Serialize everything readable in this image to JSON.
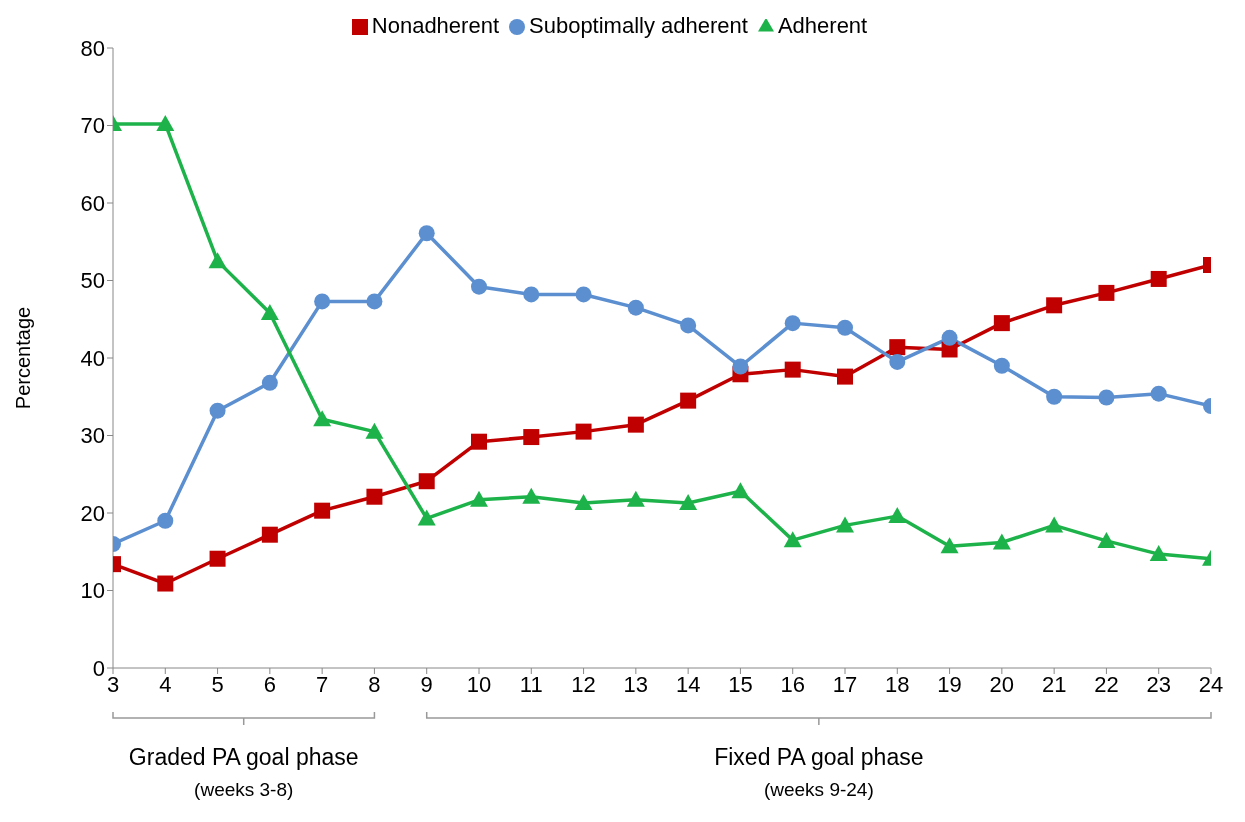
{
  "chart_data": {
    "type": "line",
    "ylabel": "Percentage",
    "legend": "top",
    "grid": false,
    "x": [
      3,
      4,
      5,
      6,
      7,
      8,
      9,
      10,
      11,
      12,
      13,
      14,
      15,
      16,
      17,
      18,
      19,
      20,
      21,
      22,
      23,
      24
    ],
    "xlim": [
      3,
      24
    ],
    "xticks": [
      3,
      4,
      5,
      6,
      7,
      8,
      9,
      10,
      11,
      12,
      13,
      14,
      15,
      16,
      17,
      18,
      19,
      20,
      21,
      22,
      23,
      24
    ],
    "ylim": [
      0,
      80
    ],
    "yticks": [
      0,
      10,
      20,
      30,
      40,
      50,
      60,
      70,
      80
    ],
    "series": [
      {
        "name": "Nonadherent",
        "color": "#c00000",
        "marker": "square",
        "values": [
          13.4,
          10.9,
          14.1,
          17.2,
          20.3,
          22.1,
          24.1,
          29.2,
          29.8,
          30.5,
          31.4,
          34.5,
          37.9,
          38.5,
          37.6,
          41.4,
          41.1,
          44.5,
          46.8,
          48.4,
          50.2,
          52.0
        ]
      },
      {
        "name": "Suboptimally adherent",
        "color": "#5b8fd0",
        "marker": "circle",
        "values": [
          16.0,
          19.0,
          33.2,
          36.8,
          47.3,
          47.3,
          56.1,
          49.2,
          48.2,
          48.2,
          46.5,
          44.2,
          38.9,
          44.5,
          43.9,
          39.5,
          42.6,
          39.0,
          35.0,
          34.9,
          35.4,
          33.8
        ]
      },
      {
        "name": "Adherent",
        "color": "#1db34a",
        "marker": "triangle",
        "values": [
          70.2,
          70.2,
          52.5,
          45.8,
          32.1,
          30.5,
          19.3,
          21.7,
          22.1,
          21.3,
          21.7,
          21.3,
          22.8,
          16.5,
          18.4,
          19.6,
          15.7,
          16.2,
          18.4,
          16.4,
          14.7,
          14.1
        ]
      }
    ],
    "annotations": [
      "Graded PA goal phase",
      "(weeks 3-8)",
      "Fixed PA goal phase",
      "(weeks 9-24)"
    ]
  }
}
